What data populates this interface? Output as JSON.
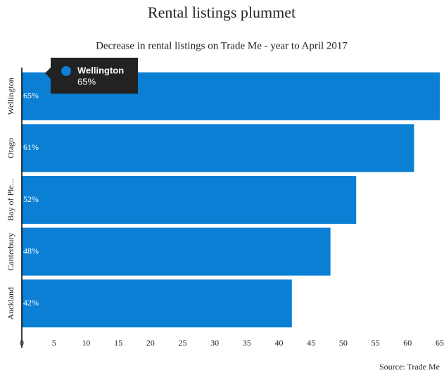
{
  "chart_data": {
    "type": "hbar",
    "title": "Rental listings plummet",
    "subtitle": "Decrease in rental listings on Trade Me - year to April 2017",
    "source": "Source: Trade Me",
    "categories": [
      "Wellington",
      "Otago",
      "Bay of Ple...",
      "Canterbury",
      "Auckland"
    ],
    "values": [
      65,
      61,
      52,
      48,
      42
    ],
    "value_labels": [
      "65%",
      "61%",
      "52%",
      "48%",
      "42%"
    ],
    "color": "#0a7fd4",
    "xlim": [
      0,
      65
    ],
    "xticks": [
      0,
      5,
      10,
      15,
      20,
      25,
      30,
      35,
      40,
      45,
      50,
      55,
      60,
      65
    ],
    "grid": false
  }
}
